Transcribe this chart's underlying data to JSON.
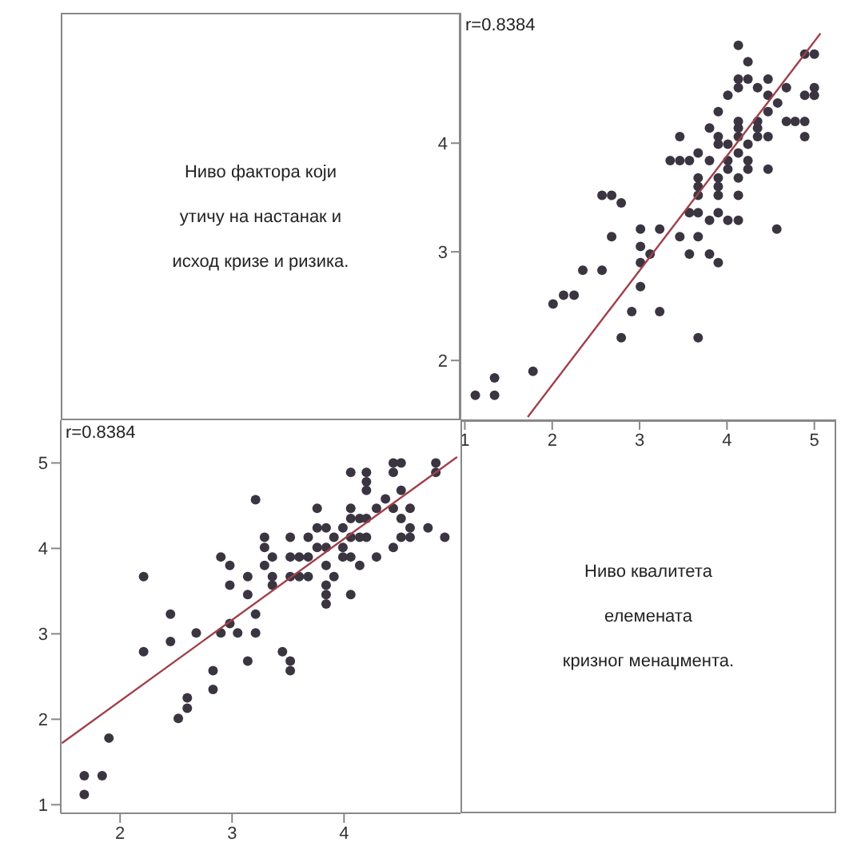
{
  "chart_data": [
    {
      "type": "other",
      "annotations": [
        "Ниво фактора који",
        "утичу на настанак и",
        "исход кризе и ризика."
      ]
    },
    {
      "type": "scatter",
      "annotations": [
        "r=0.8384"
      ],
      "xlim": [
        0.95,
        5.25
      ],
      "xticks": [
        1,
        2,
        3,
        4,
        5
      ],
      "ylim": [
        1.45,
        5.2
      ],
      "yticks": [
        2,
        3,
        4
      ],
      "series": [
        {
          "type": "scatter",
          "marker": "circle",
          "color": "#3a3540",
          "x": [
            1.34,
            1.34,
            1.12,
            1.78,
            3.67,
            4.57,
            2.79,
            3.23,
            2.91,
            3.01,
            2.57,
            2.35,
            2.25,
            2.13,
            2.01,
            3.9,
            3.8,
            3.57,
            3.67,
            3.46,
            3.12,
            3.01,
            3.01,
            3.01,
            3.23,
            2.68,
            2.79,
            2.68,
            2.57,
            4.13,
            4.01,
            3.9,
            3.8,
            3.57,
            4.13,
            3.9,
            3.9,
            3.67,
            3.67,
            3.67,
            4.13,
            4.01,
            4.24,
            4.47,
            4.24,
            4.01,
            3.8,
            3.57,
            3.46,
            3.35,
            4.13,
            3.67,
            4.24,
            4.01,
            3.9,
            4.35,
            4.13,
            3.9,
            4.47,
            4.35,
            4.13,
            3.8,
            4.35,
            4.13,
            3.9,
            3.67,
            3.46,
            3.9,
            4.47,
            4.89,
            4.78,
            4.68,
            4.89,
            4.58,
            5.0,
            5.0,
            4.89,
            4.68,
            4.47,
            4.35,
            4.13,
            4.01,
            4.47,
            4.24,
            4.13,
            4.24,
            5.0,
            4.89,
            4.13
          ],
          "values": [
            1.68,
            1.84,
            1.68,
            1.9,
            2.21,
            3.21,
            2.21,
            2.45,
            2.45,
            2.68,
            2.83,
            2.83,
            2.6,
            2.6,
            2.52,
            2.9,
            2.98,
            2.98,
            3.14,
            3.14,
            2.98,
            2.9,
            3.05,
            3.21,
            3.21,
            3.14,
            3.45,
            3.52,
            3.52,
            3.29,
            3.29,
            3.36,
            3.29,
            3.36,
            3.52,
            3.52,
            3.6,
            3.36,
            3.52,
            3.6,
            3.68,
            3.76,
            3.76,
            3.76,
            3.84,
            3.84,
            3.84,
            3.84,
            3.84,
            3.84,
            3.91,
            3.91,
            3.99,
            3.99,
            3.99,
            4.06,
            4.06,
            4.06,
            4.06,
            4.14,
            4.14,
            4.14,
            4.2,
            4.2,
            3.68,
            3.68,
            4.06,
            4.29,
            4.29,
            4.2,
            4.2,
            4.2,
            4.06,
            4.37,
            4.44,
            4.51,
            4.44,
            4.51,
            4.44,
            4.51,
            4.51,
            4.44,
            4.59,
            4.59,
            4.59,
            4.75,
            4.82,
            4.82,
            4.9
          ]
        },
        {
          "type": "line",
          "marker": "none",
          "color": "#a0404a",
          "x": [
            1.72,
            5.07
          ],
          "values": [
            1.48,
            5.01
          ]
        }
      ]
    },
    {
      "type": "scatter",
      "annotations": [
        "r=0.8384"
      ],
      "xlim": [
        1.47,
        5.04
      ],
      "xticks": [
        2,
        3,
        4
      ],
      "ylim": [
        0.9,
        5.5
      ],
      "yticks": [
        1,
        2,
        3,
        4,
        5
      ],
      "series": [
        {
          "type": "scatter",
          "marker": "circle",
          "color": "#3a3540",
          "x": [
            1.68,
            1.84,
            1.68,
            1.9,
            2.21,
            3.21,
            2.21,
            2.45,
            2.45,
            2.68,
            2.83,
            2.83,
            2.6,
            2.6,
            2.52,
            2.9,
            2.98,
            2.98,
            3.14,
            3.14,
            2.98,
            2.9,
            3.05,
            3.21,
            3.21,
            3.14,
            3.45,
            3.52,
            3.52,
            3.29,
            3.29,
            3.36,
            3.29,
            3.36,
            3.52,
            3.52,
            3.6,
            3.36,
            3.52,
            3.6,
            3.68,
            3.76,
            3.76,
            3.76,
            3.84,
            3.84,
            3.84,
            3.84,
            3.84,
            3.84,
            3.91,
            3.91,
            3.99,
            3.99,
            3.99,
            4.06,
            4.06,
            4.06,
            4.06,
            4.14,
            4.14,
            4.14,
            4.2,
            4.2,
            3.68,
            3.68,
            4.06,
            4.29,
            4.29,
            4.2,
            4.2,
            4.2,
            4.06,
            4.37,
            4.44,
            4.51,
            4.44,
            4.51,
            4.44,
            4.51,
            4.51,
            4.44,
            4.59,
            4.59,
            4.59,
            4.75,
            4.82,
            4.82,
            4.9
          ],
          "values": [
            1.34,
            1.34,
            1.12,
            1.78,
            3.67,
            4.57,
            2.79,
            3.23,
            2.91,
            3.01,
            2.57,
            2.35,
            2.25,
            2.13,
            2.01,
            3.9,
            3.8,
            3.57,
            3.67,
            3.46,
            3.12,
            3.01,
            3.01,
            3.01,
            3.23,
            2.68,
            2.79,
            2.68,
            2.57,
            4.13,
            4.01,
            3.9,
            3.8,
            3.57,
            4.13,
            3.9,
            3.9,
            3.67,
            3.67,
            3.67,
            4.13,
            4.01,
            4.24,
            4.47,
            4.24,
            4.01,
            3.8,
            3.57,
            3.46,
            3.35,
            4.13,
            3.67,
            4.24,
            4.01,
            3.9,
            4.35,
            4.13,
            3.9,
            4.47,
            4.35,
            4.13,
            3.8,
            4.35,
            4.13,
            3.9,
            3.67,
            3.46,
            3.9,
            4.47,
            4.89,
            4.78,
            4.68,
            4.89,
            4.58,
            5.0,
            5.0,
            4.89,
            4.68,
            4.47,
            4.35,
            4.13,
            4.01,
            4.47,
            4.24,
            4.13,
            4.24,
            5.0,
            4.89,
            4.13
          ]
        },
        {
          "type": "line",
          "marker": "none",
          "color": "#a0404a",
          "x": [
            1.48,
            5.01
          ],
          "values": [
            1.72,
            5.07
          ]
        }
      ]
    },
    {
      "type": "other",
      "annotations": [
        "Ниво квалитета",
        "елемената",
        "кризног менаџмента."
      ]
    }
  ]
}
